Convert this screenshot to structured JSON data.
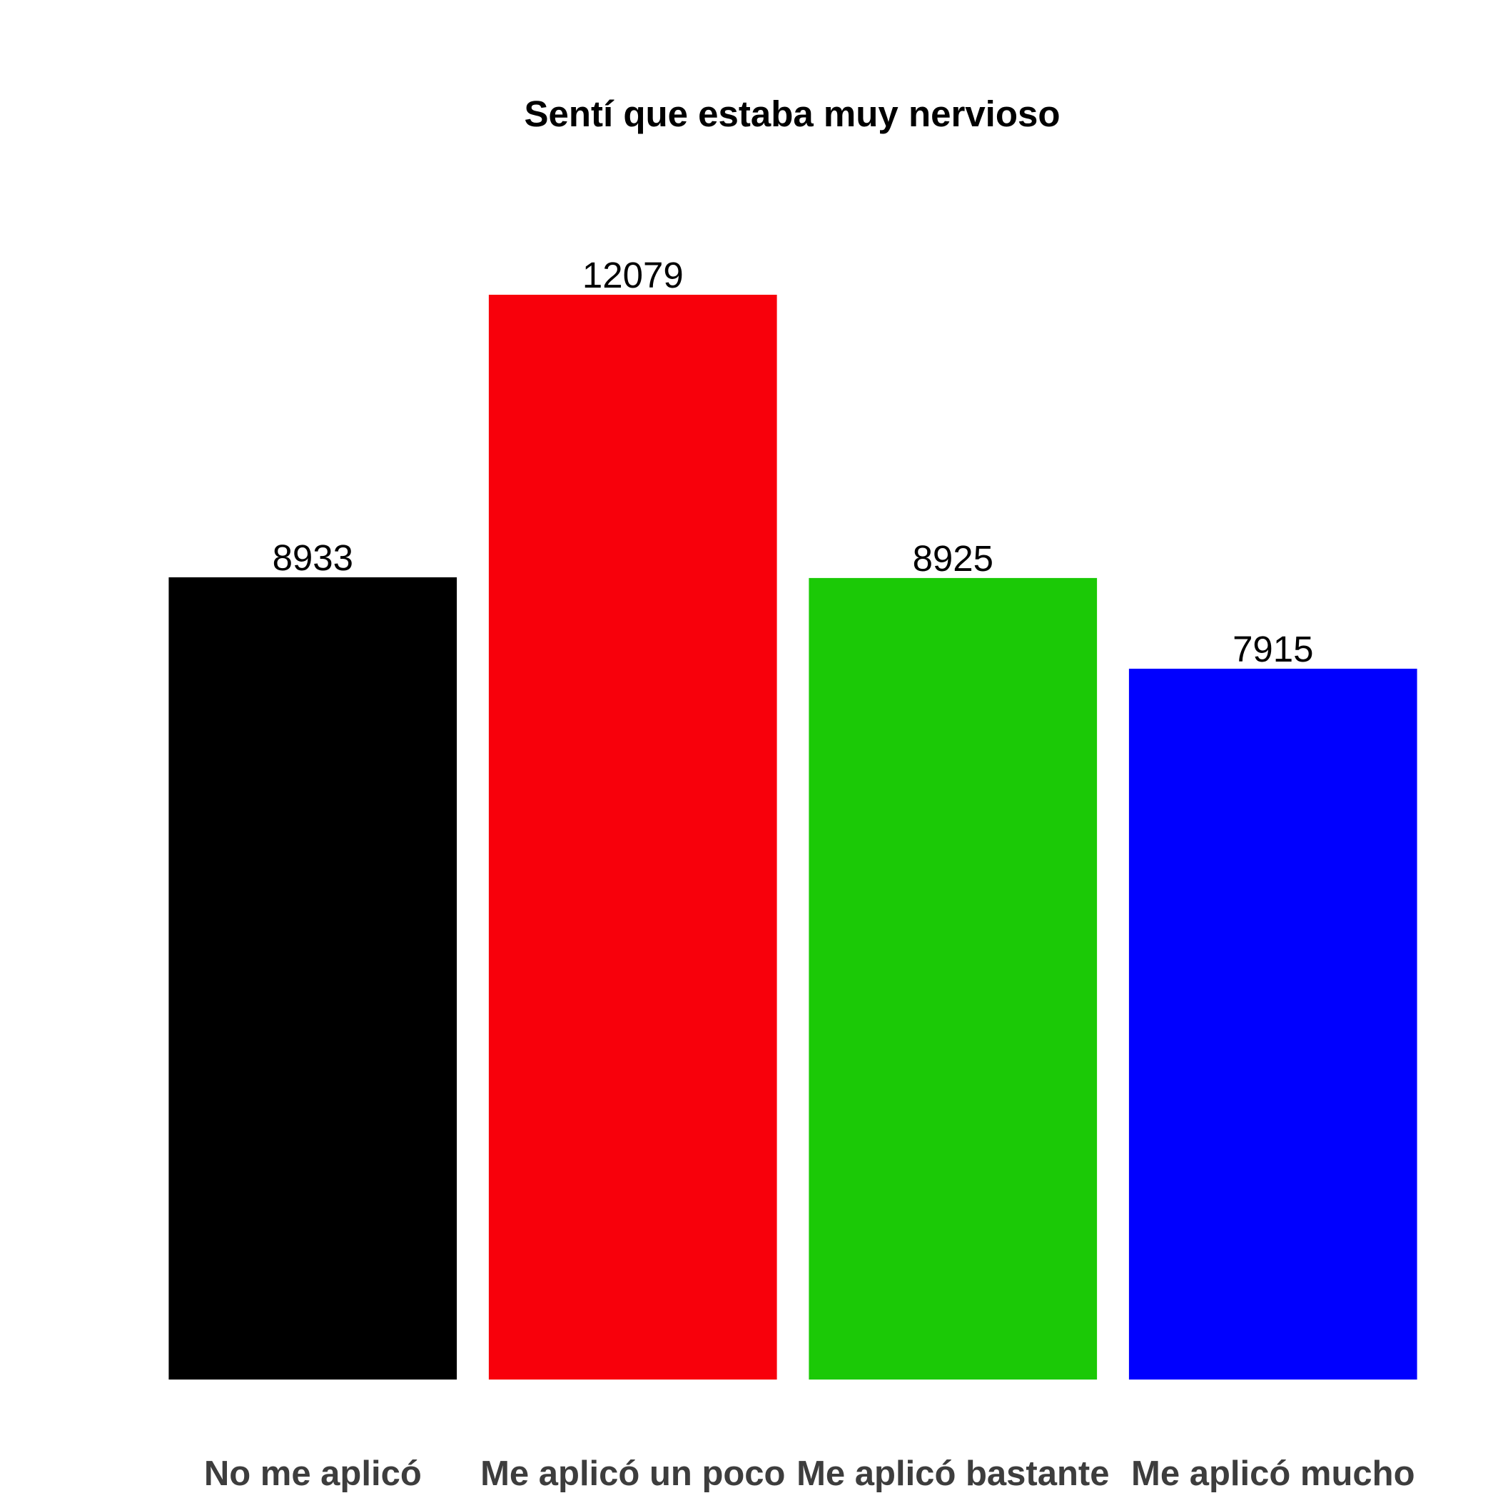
{
  "chart_data": {
    "type": "bar",
    "title": "Sentí que estaba muy nervioso",
    "xlabel": "",
    "ylabel": "",
    "categories": [
      "No me aplicó",
      "Me aplicó un poco",
      "Me aplicó bastante",
      "Me aplicó mucho"
    ],
    "values": [
      8933,
      12079,
      8925,
      7915
    ],
    "colors": [
      "#000000",
      "#f8000b",
      "#1bc906",
      "#0000ff"
    ],
    "ylim": [
      0,
      12079
    ],
    "grid": false,
    "legend": "none"
  }
}
